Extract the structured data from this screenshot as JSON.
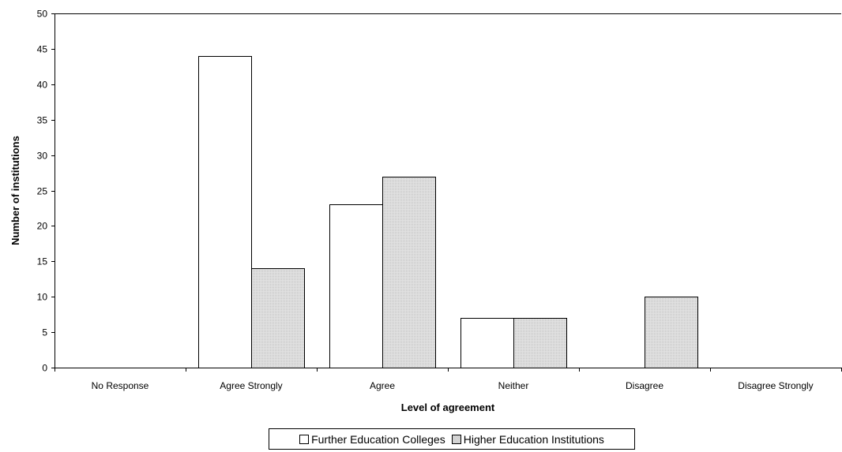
{
  "chart_data": {
    "type": "bar",
    "categories": [
      "No Response",
      "Agree Strongly",
      "Agree",
      "Neither",
      "Disagree",
      "Disagree Strongly"
    ],
    "series": [
      {
        "name": "Further Education Colleges",
        "values": [
          0,
          44,
          23,
          7,
          0,
          0
        ],
        "color": "#ffffff"
      },
      {
        "name": "Higher Education Institutions",
        "values": [
          0,
          14,
          27,
          7,
          10,
          0
        ],
        "color": "#d9d9d9"
      }
    ],
    "title": "",
    "xlabel": "Level of agreement",
    "ylabel": "Number of institutions",
    "ylim": [
      0,
      50
    ],
    "yticks": [
      0,
      5,
      10,
      15,
      20,
      25,
      30,
      35,
      40,
      45,
      50
    ],
    "grid": false,
    "legend": "bottom"
  }
}
